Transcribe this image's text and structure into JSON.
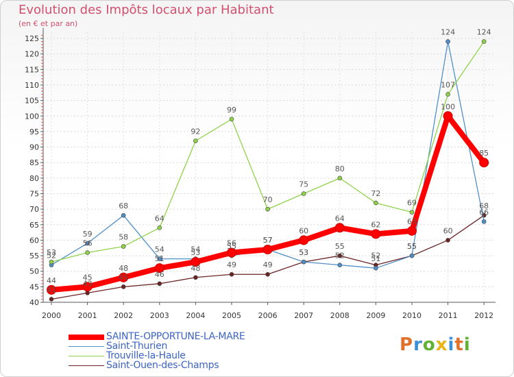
{
  "chart_data": {
    "type": "line",
    "title": "Evolution des Impôts locaux par Habitant",
    "subtitle": "(en € et par an)",
    "x": [
      "2000",
      "2001",
      "2002",
      "2003",
      "2004",
      "2005",
      "2006",
      "2007",
      "2008",
      "2009",
      "2010",
      "2011",
      "2012"
    ],
    "yticks": [
      "40",
      "45",
      "50",
      "55",
      "60",
      "65",
      "70",
      "75",
      "80",
      "85",
      "90",
      "95",
      "100",
      "105",
      "110",
      "115",
      "120",
      "125"
    ],
    "ylim": [
      40,
      127
    ],
    "series": [
      {
        "name": "SAINTE-OPPORTUNE-LA-MARE",
        "color": "#ff0000",
        "values": [
          44,
          45,
          48,
          51,
          53,
          56,
          57,
          60,
          64,
          62,
          63,
          100,
          85
        ],
        "labels": [
          "44",
          "45",
          "48",
          "51",
          "53",
          "56",
          "57",
          "60",
          "64",
          "62",
          "63",
          "100",
          "85"
        ]
      },
      {
        "name": "Saint-Thurien",
        "color": "#4f8fc8",
        "values": [
          52,
          59,
          68,
          54,
          54,
          55,
          57,
          53,
          52,
          51,
          55,
          124,
          66
        ],
        "labels": [
          "52",
          "59",
          "68",
          "54",
          "54",
          "55",
          "57",
          "53",
          "52",
          "51",
          "55",
          "124",
          "66"
        ]
      },
      {
        "name": "Trouville-la-Haule",
        "color": "#8fd24a",
        "values": [
          53,
          56,
          58,
          64,
          92,
          99,
          70,
          75,
          80,
          72,
          69,
          107,
          124
        ],
        "labels": [
          "53",
          "56",
          "58",
          "64",
          "92",
          "99",
          "70",
          "75",
          "80",
          "72",
          "69",
          "107",
          "124"
        ]
      },
      {
        "name": "Saint-Ouen-des-Champs",
        "color": "#6b2424",
        "values": [
          41,
          43,
          45,
          46,
          48,
          49,
          49,
          53,
          55,
          52,
          55,
          60,
          68
        ],
        "labels": [
          "41",
          "43",
          "45",
          "46",
          "48",
          "49",
          "49",
          "53",
          "55",
          "52",
          "55",
          "60",
          "68"
        ]
      }
    ],
    "legend_position": "bottom-left"
  },
  "logo": {
    "text": "Proxiti",
    "letters": [
      "P",
      "r",
      "o",
      "x",
      "i",
      "t",
      "i"
    ]
  }
}
